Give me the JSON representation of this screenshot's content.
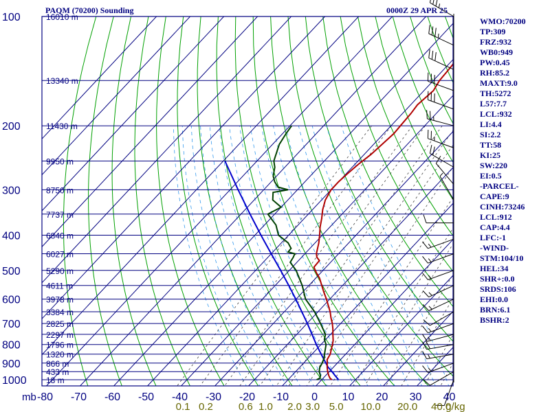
{
  "header": {
    "station": "PAQM (70200) Sounding",
    "valid": "0000Z 29 APR 25"
  },
  "indices": [
    "WMO:70200",
    "TP:309",
    "FRZ:932",
    "WB0:949",
    "PW:0.45",
    "RH:85.2",
    "MAXT:9.0",
    "TH:5272",
    "L57:7.7",
    "LCL:932",
    "LI:4.4",
    "SI:2.2",
    "TT:58",
    "KI:25",
    "SW:220",
    "EI:0.5",
    "-PARCEL-",
    "CAPE:9",
    "CINH:73246",
    "LCL:912",
    "CAP:4.4",
    "LFC:-1",
    "-WIND-",
    "STM:104/10",
    "HEL:34",
    "SHR+:0.0",
    "SRDS:106",
    "EHI:0.0",
    "BRN:6.1",
    "BSHR:2"
  ],
  "colors": {
    "frame": "#000080",
    "isotherm": "#000080",
    "dry_adiabat": "#00a000",
    "moist_adiabat": "#3399ee",
    "mixing_ratio": "#404040",
    "temperature": "#b00000",
    "dewpoint": "#004000",
    "parcel": "#0000cc",
    "wind": "#000000",
    "mixing_label": "#666600"
  },
  "chart_data": {
    "type": "line",
    "title": "PAQM (70200) Sounding",
    "y_scale": "log",
    "pressure_unit_label": "mb",
    "pressure_ticks": [
      100,
      200,
      300,
      400,
      500,
      600,
      700,
      800,
      900,
      1000
    ],
    "pressure_range": [
      100,
      1050
    ],
    "temperature_ticks": [
      -80,
      -70,
      -60,
      -50,
      -40,
      -30,
      -20,
      -10,
      0,
      10,
      20,
      30,
      40
    ],
    "temperature_tick_labels": [
      "-80",
      "-70",
      "-60",
      "-50",
      "-40",
      "-30",
      "-20",
      "-10",
      "0",
      "10",
      "20",
      "30",
      "40"
    ],
    "mixing_ratio_labels": [
      {
        "text": "0.1",
        "value": 0.1
      },
      {
        "text": "0.2",
        "value": 0.2
      },
      {
        "text": "0.6",
        "value": 0.6
      },
      {
        "text": "1.0",
        "value": 1.0
      },
      {
        "text": "2.0",
        "value": 2.0
      },
      {
        "text": "3.0",
        "value": 3.0
      },
      {
        "text": "5.0",
        "value": 5.0
      },
      {
        "text": "10.0",
        "value": 10.0
      },
      {
        "text": "20.0",
        "value": 20.0
      },
      {
        "text": "40.0",
        "value": 40.0
      }
    ],
    "mixing_ratio_unit": "g/kg",
    "heights": [
      {
        "p": 100,
        "label": "16010 m"
      },
      {
        "p": 150,
        "label": "13340 m"
      },
      {
        "p": 200,
        "label": "11430 m"
      },
      {
        "p": 250,
        "label": "9950 m"
      },
      {
        "p": 300,
        "label": "8750 m"
      },
      {
        "p": 350,
        "label": "7737 m"
      },
      {
        "p": 400,
        "label": "6840 m"
      },
      {
        "p": 450,
        "label": "6027 m"
      },
      {
        "p": 500,
        "label": "5290 m"
      },
      {
        "p": 550,
        "label": "4611 m"
      },
      {
        "p": 600,
        "label": "3978 m"
      },
      {
        "p": 650,
        "label": "3384 m"
      },
      {
        "p": 700,
        "label": "2825 m"
      },
      {
        "p": 750,
        "label": "2297 m"
      },
      {
        "p": 800,
        "label": "1796 m"
      },
      {
        "p": 850,
        "label": "1320 m"
      },
      {
        "p": 900,
        "label": "866 m"
      },
      {
        "p": 950,
        "label": "433 m"
      },
      {
        "p": 1000,
        "label": "18 m"
      }
    ],
    "temperature": {
      "name": "Temperature",
      "points": [
        [
          1000,
          3.0
        ],
        [
          990,
          2.0
        ],
        [
          975,
          1.0
        ],
        [
          950,
          -0.5
        ],
        [
          925,
          -1.8
        ],
        [
          900,
          -3.0
        ],
        [
          880,
          -4.0
        ],
        [
          850,
          -4.6
        ],
        [
          825,
          -5.6
        ],
        [
          800,
          -6.6
        ],
        [
          780,
          -7.5
        ],
        [
          750,
          -9.3
        ],
        [
          725,
          -10.8
        ],
        [
          700,
          -12.5
        ],
        [
          675,
          -14.5
        ],
        [
          650,
          -16.4
        ],
        [
          600,
          -21.0
        ],
        [
          575,
          -23.6
        ],
        [
          550,
          -26.2
        ],
        [
          525,
          -28.9
        ],
        [
          510,
          -31.0
        ],
        [
          490,
          -33.6
        ],
        [
          470,
          -33.8
        ],
        [
          460,
          -35.5
        ],
        [
          450,
          -36.6
        ],
        [
          420,
          -38.9
        ],
        [
          400,
          -40.8
        ],
        [
          380,
          -42.9
        ],
        [
          360,
          -44.8
        ],
        [
          340,
          -47.0
        ],
        [
          320,
          -48.9
        ],
        [
          300,
          -50.0
        ],
        [
          285,
          -50.0
        ],
        [
          270,
          -49.6
        ],
        [
          255,
          -49.0
        ],
        [
          240,
          -48.0
        ],
        [
          225,
          -47.5
        ],
        [
          210,
          -47.0
        ],
        [
          200,
          -47.2
        ],
        [
          185,
          -47.5
        ],
        [
          175,
          -48.0
        ],
        [
          160,
          -47.2
        ],
        [
          150,
          -48.2
        ],
        [
          140,
          -48.5
        ],
        [
          130,
          -49.0
        ],
        [
          120,
          -49.3
        ],
        [
          110,
          -49.6
        ],
        [
          100,
          -49.8
        ]
      ]
    },
    "dewpoint": {
      "name": "Dew Point",
      "points": [
        [
          1000,
          -1.5
        ],
        [
          990,
          -1.0
        ],
        [
          975,
          -1.5
        ],
        [
          950,
          -3.0
        ],
        [
          925,
          -4.0
        ],
        [
          900,
          -4.5
        ],
        [
          875,
          -5.2
        ],
        [
          850,
          -6.3
        ],
        [
          800,
          -8.5
        ],
        [
          775,
          -10.4
        ],
        [
          750,
          -11.5
        ],
        [
          700,
          -16.0
        ],
        [
          650,
          -21.0
        ],
        [
          600,
          -27.2
        ],
        [
          550,
          -32.0
        ],
        [
          500,
          -38.0
        ],
        [
          475,
          -42.0
        ],
        [
          460,
          -42.5
        ],
        [
          450,
          -43.0
        ],
        [
          445,
          -45.5
        ],
        [
          435,
          -45.6
        ],
        [
          420,
          -48.0
        ],
        [
          400,
          -53.0
        ],
        [
          375,
          -56.6
        ],
        [
          350,
          -62.0
        ],
        [
          335,
          -60.0
        ],
        [
          320,
          -64.5
        ],
        [
          305,
          -66.5
        ],
        [
          300,
          -62.8
        ],
        [
          295,
          -66.5
        ],
        [
          285,
          -69.0
        ],
        [
          275,
          -71.0
        ],
        [
          260,
          -73.0
        ],
        [
          250,
          -75.0
        ],
        [
          225,
          -78.0
        ],
        [
          210,
          -79.0
        ],
        [
          200,
          -79.5
        ]
      ]
    },
    "parcel": {
      "name": "Parcel",
      "points": [
        [
          1000,
          5.0
        ],
        [
          975,
          2.9
        ],
        [
          950,
          0.8
        ],
        [
          932,
          -0.8
        ],
        [
          925,
          -1.5
        ],
        [
          900,
          -3.4
        ],
        [
          850,
          -7.3
        ],
        [
          800,
          -11.4
        ],
        [
          750,
          -15.5
        ],
        [
          700,
          -19.9
        ],
        [
          650,
          -24.8
        ],
        [
          600,
          -30.1
        ],
        [
          550,
          -36.0
        ],
        [
          500,
          -42.6
        ],
        [
          450,
          -50.0
        ],
        [
          400,
          -58.2
        ],
        [
          350,
          -67.3
        ],
        [
          300,
          -77.6
        ],
        [
          250,
          -89.5
        ]
      ]
    },
    "winds": [
      {
        "p": 100,
        "dir": 300,
        "spd": 35
      },
      {
        "p": 120,
        "dir": 295,
        "spd": 35
      },
      {
        "p": 140,
        "dir": 295,
        "spd": 30
      },
      {
        "p": 160,
        "dir": 290,
        "spd": 30
      },
      {
        "p": 180,
        "dir": 290,
        "spd": 30
      },
      {
        "p": 200,
        "dir": 285,
        "spd": 25
      },
      {
        "p": 230,
        "dir": 290,
        "spd": 25
      },
      {
        "p": 260,
        "dir": 300,
        "spd": 20
      },
      {
        "p": 290,
        "dir": 320,
        "spd": 10
      },
      {
        "p": 320,
        "dir": 330,
        "spd": 5
      },
      {
        "p": 370,
        "dir": 270,
        "spd": 10
      },
      {
        "p": 410,
        "dir": 250,
        "spd": 15
      },
      {
        "p": 450,
        "dir": 250,
        "spd": 15
      },
      {
        "p": 500,
        "dir": 250,
        "spd": 15
      },
      {
        "p": 550,
        "dir": 245,
        "spd": 15
      },
      {
        "p": 600,
        "dir": 245,
        "spd": 15
      },
      {
        "p": 650,
        "dir": 240,
        "spd": 10
      },
      {
        "p": 700,
        "dir": 250,
        "spd": 15
      },
      {
        "p": 750,
        "dir": 255,
        "spd": 15
      },
      {
        "p": 800,
        "dir": 260,
        "spd": 20
      },
      {
        "p": 850,
        "dir": 260,
        "spd": 15
      },
      {
        "p": 900,
        "dir": 250,
        "spd": 15
      },
      {
        "p": 950,
        "dir": 240,
        "spd": 10
      },
      {
        "p": 1000,
        "dir": 200,
        "spd": 10
      }
    ]
  }
}
